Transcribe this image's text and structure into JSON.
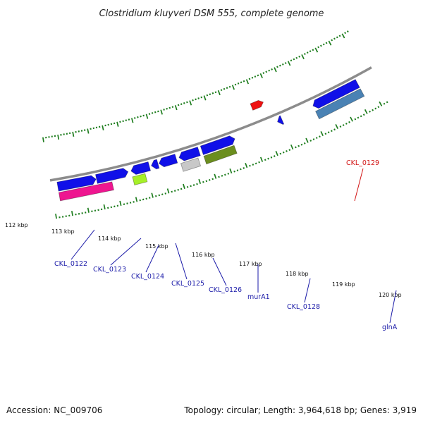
{
  "title": "Clostridium kluyveri DSM 555, complete genome",
  "footer": {
    "accession": "Accession: NC_009706",
    "summary": "Topology: circular; Length: 3,964,618 bp; Genes: 3,919"
  },
  "colors": {
    "backbone": "#8c8c8c",
    "tick": "#1e7d1e",
    "label_default": "#1a1aa8",
    "label_highlight": "#d21414"
  },
  "scale_labels": [
    "112 kbp",
    "113 kbp",
    "114 kbp",
    "115 kbp",
    "116 kbp",
    "117 kbp",
    "118 kbp",
    "119 kbp",
    "120 kbp"
  ],
  "features": [
    {
      "name": "blue-a",
      "color": "#1010e8",
      "strand": 1,
      "dir": 1,
      "track": 1
    },
    {
      "name": "blue-b",
      "color": "#1010e8",
      "strand": 1,
      "dir": 1,
      "track": 1
    },
    {
      "name": "pink",
      "color": "#ee1690",
      "strand": 1,
      "dir": 0,
      "track": 2
    },
    {
      "name": "blue-c",
      "color": "#1010e8",
      "strand": 1,
      "dir": -1,
      "track": 1
    },
    {
      "name": "lime",
      "color": "#a6f028",
      "strand": 1,
      "dir": 0,
      "track": 2
    },
    {
      "name": "blue-d",
      "color": "#1010e8",
      "strand": 1,
      "dir": -1,
      "track": 1
    },
    {
      "name": "blue-e",
      "color": "#1010e8",
      "strand": 1,
      "dir": -1,
      "track": 1
    },
    {
      "name": "blue-f",
      "color": "#1010e8",
      "strand": 1,
      "dir": -1,
      "track": 1
    },
    {
      "name": "grey",
      "color": "#c8c8c8",
      "strand": 1,
      "dir": 0,
      "track": 2
    },
    {
      "name": "blue-g",
      "color": "#1010e8",
      "strand": 1,
      "dir": 1,
      "track": 1
    },
    {
      "name": "olive",
      "color": "#6b8e1e",
      "strand": 1,
      "dir": 0,
      "track": 2
    },
    {
      "name": "blue-h",
      "color": "#1010e8",
      "strand": 1,
      "dir": -1,
      "track": 1
    },
    {
      "name": "red",
      "color": "#ee1212",
      "strand": -1,
      "dir": 1,
      "track": 1
    },
    {
      "name": "blue-i",
      "color": "#1010e8",
      "strand": 1,
      "dir": -1,
      "track": 1
    },
    {
      "name": "steel-blue",
      "color": "#4a82b4",
      "strand": 1,
      "dir": 0,
      "track": 2
    }
  ],
  "gene_labels": [
    {
      "text": "CKL_0122",
      "color": "#1a1aa8"
    },
    {
      "text": "CKL_0123",
      "color": "#1a1aa8"
    },
    {
      "text": "CKL_0124",
      "color": "#1a1aa8"
    },
    {
      "text": "CKL_0125",
      "color": "#1a1aa8"
    },
    {
      "text": "CKL_0126",
      "color": "#1a1aa8"
    },
    {
      "text": "murA1",
      "color": "#1a1aa8"
    },
    {
      "text": "CKL_0128",
      "color": "#1a1aa8"
    },
    {
      "text": "glnA",
      "color": "#1a1aa8"
    },
    {
      "text": "CKL_0129",
      "color": "#d21414"
    }
  ]
}
